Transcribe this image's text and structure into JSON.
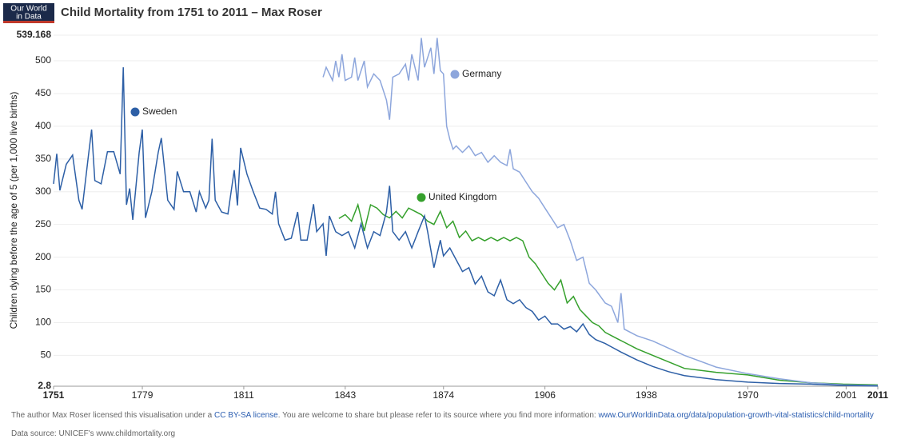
{
  "logo": [
    "Our World",
    "in Data"
  ],
  "footer": {
    "license_pre": "The author Max Roser licensed this visualisation under a",
    "license_link": "CC BY-SA license",
    "license_post": ". You are welcome to share but please refer to its source where you find more information:",
    "source_link": "www.OurWorldinData.org/data/population-growth-vital-statistics/child-mortality",
    "data_source": "Data source: UNICEF's www.childmortality.org"
  },
  "chart_data": {
    "type": "line",
    "title": "Child Mortality from 1751 to 2011 – Max Roser",
    "ylabel": "Children dying before the age of 5 (per 1,000 live births)",
    "xlim": [
      1751,
      2011
    ],
    "ylim": [
      2.8,
      539.168
    ],
    "xticks": [
      1751,
      1779,
      1811,
      1843,
      1874,
      1906,
      1938,
      1970,
      2001,
      2011
    ],
    "yticks": [
      2.8,
      50,
      100,
      150,
      200,
      250,
      300,
      350,
      400,
      450,
      500,
      539.168
    ],
    "grid": true,
    "series": [
      {
        "name": "Sweden",
        "color": "#2d5fa6",
        "x": [
          1751,
          1752,
          1753,
          1755,
          1757,
          1759,
          1760,
          1762,
          1763,
          1764,
          1766,
          1768,
          1770,
          1772,
          1773,
          1774,
          1775,
          1776,
          1778,
          1779,
          1780,
          1782,
          1784,
          1785,
          1787,
          1789,
          1790,
          1792,
          1794,
          1796,
          1797,
          1799,
          1800,
          1801,
          1802,
          1804,
          1806,
          1808,
          1809,
          1810,
          1812,
          1814,
          1816,
          1818,
          1820,
          1821,
          1822,
          1824,
          1826,
          1828,
          1829,
          1831,
          1833,
          1834,
          1836,
          1837,
          1838,
          1840,
          1842,
          1844,
          1846,
          1848,
          1850,
          1852,
          1854,
          1856,
          1857,
          1858,
          1860,
          1862,
          1864,
          1866,
          1868,
          1869,
          1871,
          1873,
          1874,
          1876,
          1878,
          1880,
          1882,
          1884,
          1886,
          1888,
          1890,
          1892,
          1894,
          1896,
          1898,
          1900,
          1902,
          1904,
          1906,
          1908,
          1910,
          1912,
          1914,
          1916,
          1918,
          1920,
          1922,
          1925,
          1930,
          1935,
          1940,
          1945,
          1950,
          1960,
          1970,
          1980,
          1990,
          2000,
          2011
        ],
        "values": [
          312,
          358,
          302,
          342,
          356,
          287,
          273,
          355,
          395,
          317,
          312,
          361,
          361,
          327,
          490,
          280,
          305,
          257,
          360,
          395,
          260,
          300,
          360,
          382,
          287,
          273,
          331,
          300,
          300,
          269,
          300,
          275,
          287,
          381,
          287,
          269,
          266,
          333,
          279,
          367,
          327,
          300,
          275,
          273,
          266,
          300,
          251,
          226,
          229,
          269,
          226,
          226,
          281,
          239,
          251,
          202,
          263,
          239,
          233,
          239,
          214,
          251,
          214,
          239,
          233,
          269,
          309,
          239,
          226,
          239,
          214,
          239,
          263,
          239,
          184,
          226,
          202,
          214,
          196,
          178,
          184,
          159,
          171,
          147,
          141,
          165,
          135,
          129,
          135,
          123,
          117,
          104,
          110,
          98,
          98,
          90,
          94,
          86,
          98,
          82,
          74,
          68,
          55,
          43,
          33,
          25,
          19,
          13,
          9,
          7,
          6,
          4,
          3
        ]
      },
      {
        "name": "Germany",
        "color": "#8da6dc",
        "x": [
          1836,
          1837,
          1839,
          1840,
          1841,
          1842,
          1843,
          1845,
          1846,
          1847,
          1849,
          1850,
          1852,
          1854,
          1856,
          1857,
          1858,
          1860,
          1862,
          1863,
          1864,
          1866,
          1867,
          1868,
          1870,
          1871,
          1872,
          1873,
          1874,
          1875,
          1876,
          1877,
          1878,
          1880,
          1882,
          1884,
          1886,
          1888,
          1890,
          1892,
          1894,
          1895,
          1896,
          1898,
          1900,
          1902,
          1904,
          1906,
          1908,
          1910,
          1912,
          1914,
          1916,
          1918,
          1920,
          1922,
          1925,
          1927,
          1929,
          1930,
          1931,
          1933,
          1935,
          1940,
          1950,
          1960,
          1970,
          1980,
          1990,
          2000,
          2011
        ],
        "values": [
          475,
          490,
          470,
          500,
          475,
          510,
          470,
          475,
          505,
          470,
          500,
          460,
          480,
          470,
          440,
          410,
          475,
          480,
          495,
          470,
          510,
          470,
          535,
          490,
          520,
          480,
          535,
          485,
          480,
          400,
          380,
          365,
          370,
          360,
          370,
          355,
          360,
          345,
          355,
          345,
          340,
          365,
          335,
          330,
          315,
          300,
          290,
          275,
          260,
          245,
          250,
          225,
          195,
          200,
          160,
          150,
          130,
          125,
          100,
          145,
          90,
          85,
          80,
          72,
          50,
          32,
          22,
          14,
          8,
          5,
          4
        ]
      },
      {
        "name": "United Kingdom",
        "color": "#35a02c",
        "x": [
          1841,
          1843,
          1845,
          1847,
          1849,
          1851,
          1853,
          1855,
          1857,
          1859,
          1861,
          1863,
          1865,
          1867,
          1869,
          1871,
          1873,
          1875,
          1877,
          1879,
          1881,
          1883,
          1885,
          1887,
          1889,
          1891,
          1893,
          1895,
          1897,
          1899,
          1901,
          1903,
          1905,
          1907,
          1909,
          1911,
          1913,
          1915,
          1917,
          1919,
          1921,
          1923,
          1925,
          1927,
          1929,
          1931,
          1935,
          1940,
          1945,
          1950,
          1960,
          1970,
          1980,
          1990,
          2000,
          2011
        ],
        "values": [
          259,
          265,
          255,
          280,
          240,
          280,
          275,
          265,
          260,
          270,
          260,
          275,
          270,
          265,
          255,
          250,
          270,
          245,
          255,
          230,
          240,
          225,
          230,
          225,
          230,
          225,
          230,
          225,
          230,
          225,
          200,
          190,
          175,
          160,
          150,
          165,
          130,
          140,
          120,
          110,
          100,
          95,
          85,
          80,
          75,
          70,
          60,
          50,
          40,
          30,
          24,
          20,
          12,
          8,
          6,
          5
        ]
      }
    ]
  }
}
